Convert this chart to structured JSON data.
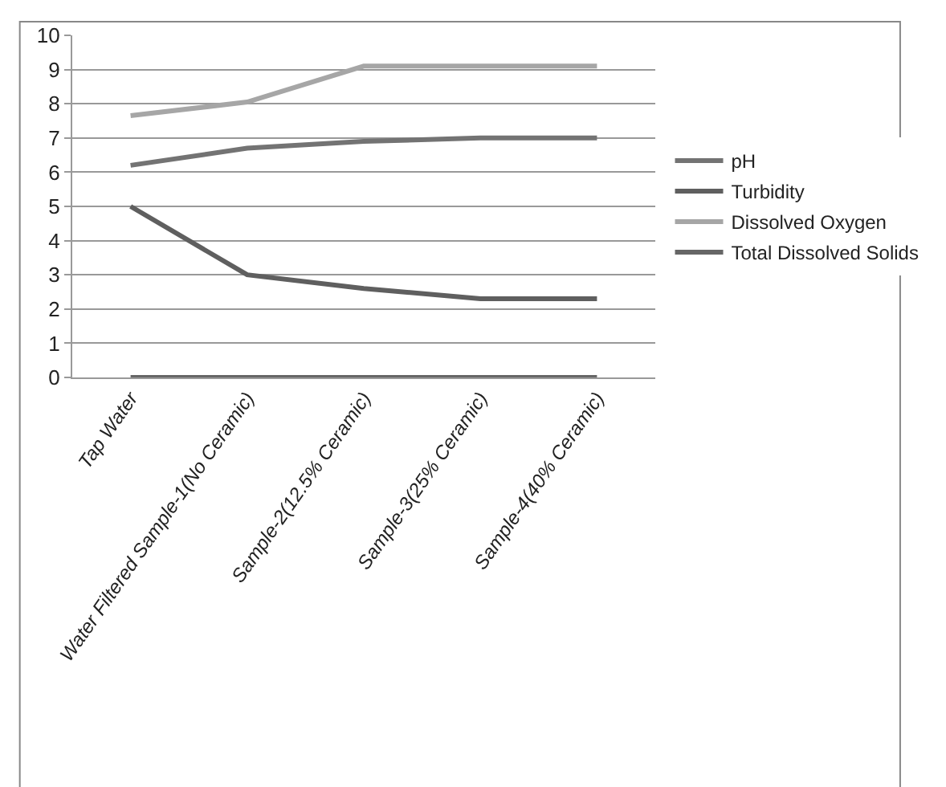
{
  "chart_data": {
    "type": "line",
    "categories": [
      "Tap Water",
      "Water Filtered Sample-1(No Ceramic)",
      "Sample-2(12.5% Ceramic)",
      "Sample-3(25% Ceramic)",
      "Sample-4(40% Ceramic)"
    ],
    "series": [
      {
        "name": "pH",
        "color": "#737373",
        "values": [
          6.2,
          6.7,
          6.9,
          7.0,
          7.0
        ]
      },
      {
        "name": "Turbidity",
        "color": "#5f5f5f",
        "values": [
          5.0,
          3.0,
          2.6,
          2.3,
          2.3
        ]
      },
      {
        "name": "Dissolved Oxygen",
        "color": "#a6a6a6",
        "values": [
          7.65,
          8.05,
          9.1,
          9.1,
          9.1
        ]
      },
      {
        "name": "Total Dissolved Solids",
        "color": "#666666",
        "values": [
          0,
          0,
          0,
          0,
          0
        ]
      }
    ],
    "ylim": [
      0,
      10
    ],
    "yticks": [
      0,
      1,
      2,
      3,
      4,
      5,
      6,
      7,
      8,
      9,
      10
    ],
    "grid": "y",
    "legend": "right",
    "marker": "none",
    "line_style": "solid"
  }
}
